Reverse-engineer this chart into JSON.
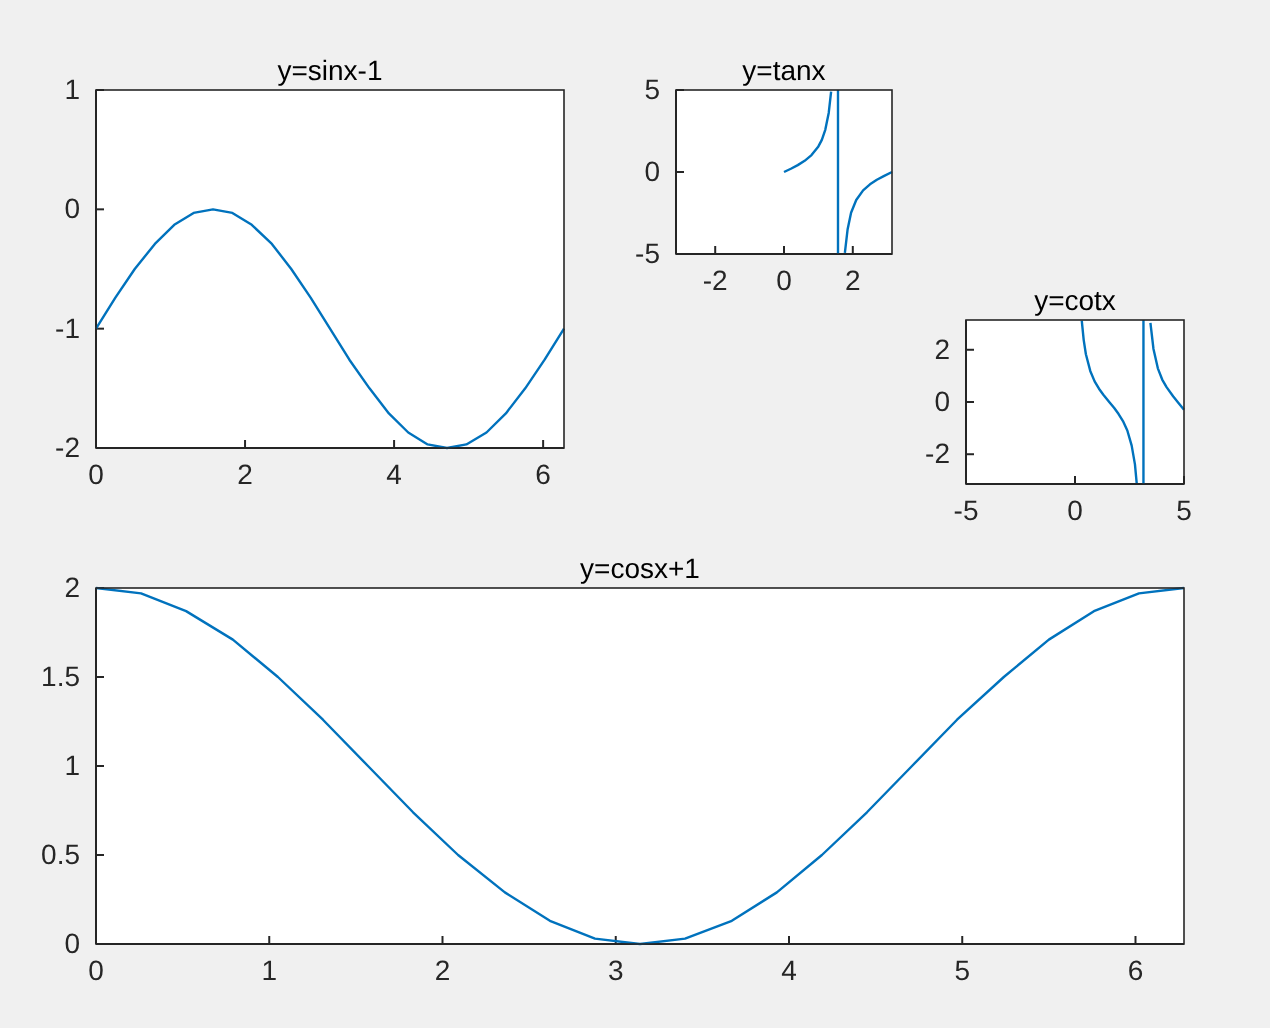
{
  "chart_data": [
    {
      "type": "line",
      "title": "y=sinx-1",
      "x": [
        0,
        0.26,
        0.52,
        0.79,
        1.05,
        1.31,
        1.57,
        1.83,
        2.09,
        2.36,
        2.62,
        2.88,
        3.14,
        3.4,
        3.67,
        3.93,
        4.19,
        4.45,
        4.71,
        4.97,
        5.24,
        5.5,
        5.76,
        6.02,
        6.28
      ],
      "series": [
        {
          "color": "#0072bd",
          "values": [
            -1,
            -0.74,
            -0.5,
            -0.29,
            -0.13,
            -0.03,
            0,
            -0.03,
            -0.13,
            -0.29,
            -0.5,
            -0.74,
            -1,
            -1.26,
            -1.5,
            -1.71,
            -1.87,
            -1.97,
            -2,
            -1.97,
            -1.87,
            -1.71,
            -1.5,
            -1.26,
            -1
          ]
        }
      ],
      "xlim": [
        0,
        6.28
      ],
      "ylim": [
        -2,
        1
      ],
      "xticks": [
        0,
        2,
        4,
        6
      ],
      "yticks": [
        -2,
        -1,
        0,
        1
      ]
    },
    {
      "type": "line",
      "title": "y=tanx",
      "x": [
        0,
        0.2,
        0.4,
        0.6,
        0.8,
        1.0,
        1.1,
        1.2,
        1.3,
        1.37,
        1.57,
        1.77,
        1.85,
        1.95,
        2.1,
        2.3,
        2.5,
        2.7,
        2.9,
        3.14
      ],
      "series": [
        {
          "color": "#0072bd",
          "values": [
            0,
            0.2,
            0.42,
            0.68,
            1.03,
            1.56,
            1.96,
            2.57,
            3.6,
            4.9,
            null,
            -4.93,
            -3.49,
            -2.48,
            -1.71,
            -1.12,
            -0.75,
            -0.47,
            -0.25,
            0
          ]
        }
      ],
      "xlim": [
        -3.14,
        3.14
      ],
      "ylim": [
        -5,
        5
      ],
      "xticks": [
        -2,
        0,
        2
      ],
      "yticks": [
        -5,
        0,
        5
      ],
      "ref_lines": [
        {
          "axis": "x",
          "value": 1.57,
          "color": "#0072bd"
        }
      ]
    },
    {
      "type": "line",
      "title": "y=cotx",
      "x": [
        0.31,
        0.4,
        0.5,
        0.7,
        0.9,
        1.1,
        1.3,
        1.57,
        1.8,
        2.0,
        2.2,
        2.4,
        2.6,
        2.75,
        2.83,
        3.14,
        3.46,
        3.6,
        3.8,
        4.0,
        4.2,
        4.5,
        4.71,
        5.0
      ],
      "series": [
        {
          "color": "#0072bd",
          "values": [
            3.12,
            2.37,
            1.83,
            1.19,
            0.79,
            0.51,
            0.28,
            0,
            -0.23,
            -0.46,
            -0.73,
            -1.09,
            -1.67,
            -2.39,
            -3.11,
            null,
            3.03,
            2.03,
            1.29,
            0.86,
            0.57,
            0.22,
            0,
            -0.3
          ]
        }
      ],
      "xlim": [
        -5,
        5
      ],
      "ylim": [
        -3.14,
        3.14
      ],
      "xticks": [
        -5,
        0,
        5
      ],
      "yticks": [
        -2,
        0,
        2
      ],
      "ref_lines": [
        {
          "axis": "x",
          "value": 3.14,
          "color": "#0072bd"
        }
      ]
    },
    {
      "type": "line",
      "title": "y=cosx+1",
      "x": [
        0,
        0.26,
        0.52,
        0.79,
        1.05,
        1.31,
        1.57,
        1.83,
        2.09,
        2.36,
        2.62,
        2.88,
        3.14,
        3.4,
        3.67,
        3.93,
        4.19,
        4.45,
        4.71,
        4.97,
        5.24,
        5.5,
        5.76,
        6.02,
        6.28
      ],
      "series": [
        {
          "color": "#0072bd",
          "values": [
            2,
            1.97,
            1.87,
            1.71,
            1.5,
            1.26,
            1,
            0.74,
            0.5,
            0.29,
            0.13,
            0.03,
            0,
            0.03,
            0.13,
            0.29,
            0.5,
            0.74,
            1,
            1.26,
            1.5,
            1.71,
            1.87,
            1.97,
            2
          ]
        }
      ],
      "xlim": [
        0,
        6.28
      ],
      "ylim": [
        0,
        2
      ],
      "xticks": [
        0,
        1,
        2,
        3,
        4,
        5,
        6
      ],
      "yticks": [
        0,
        0.5,
        1,
        1.5,
        2
      ]
    }
  ]
}
